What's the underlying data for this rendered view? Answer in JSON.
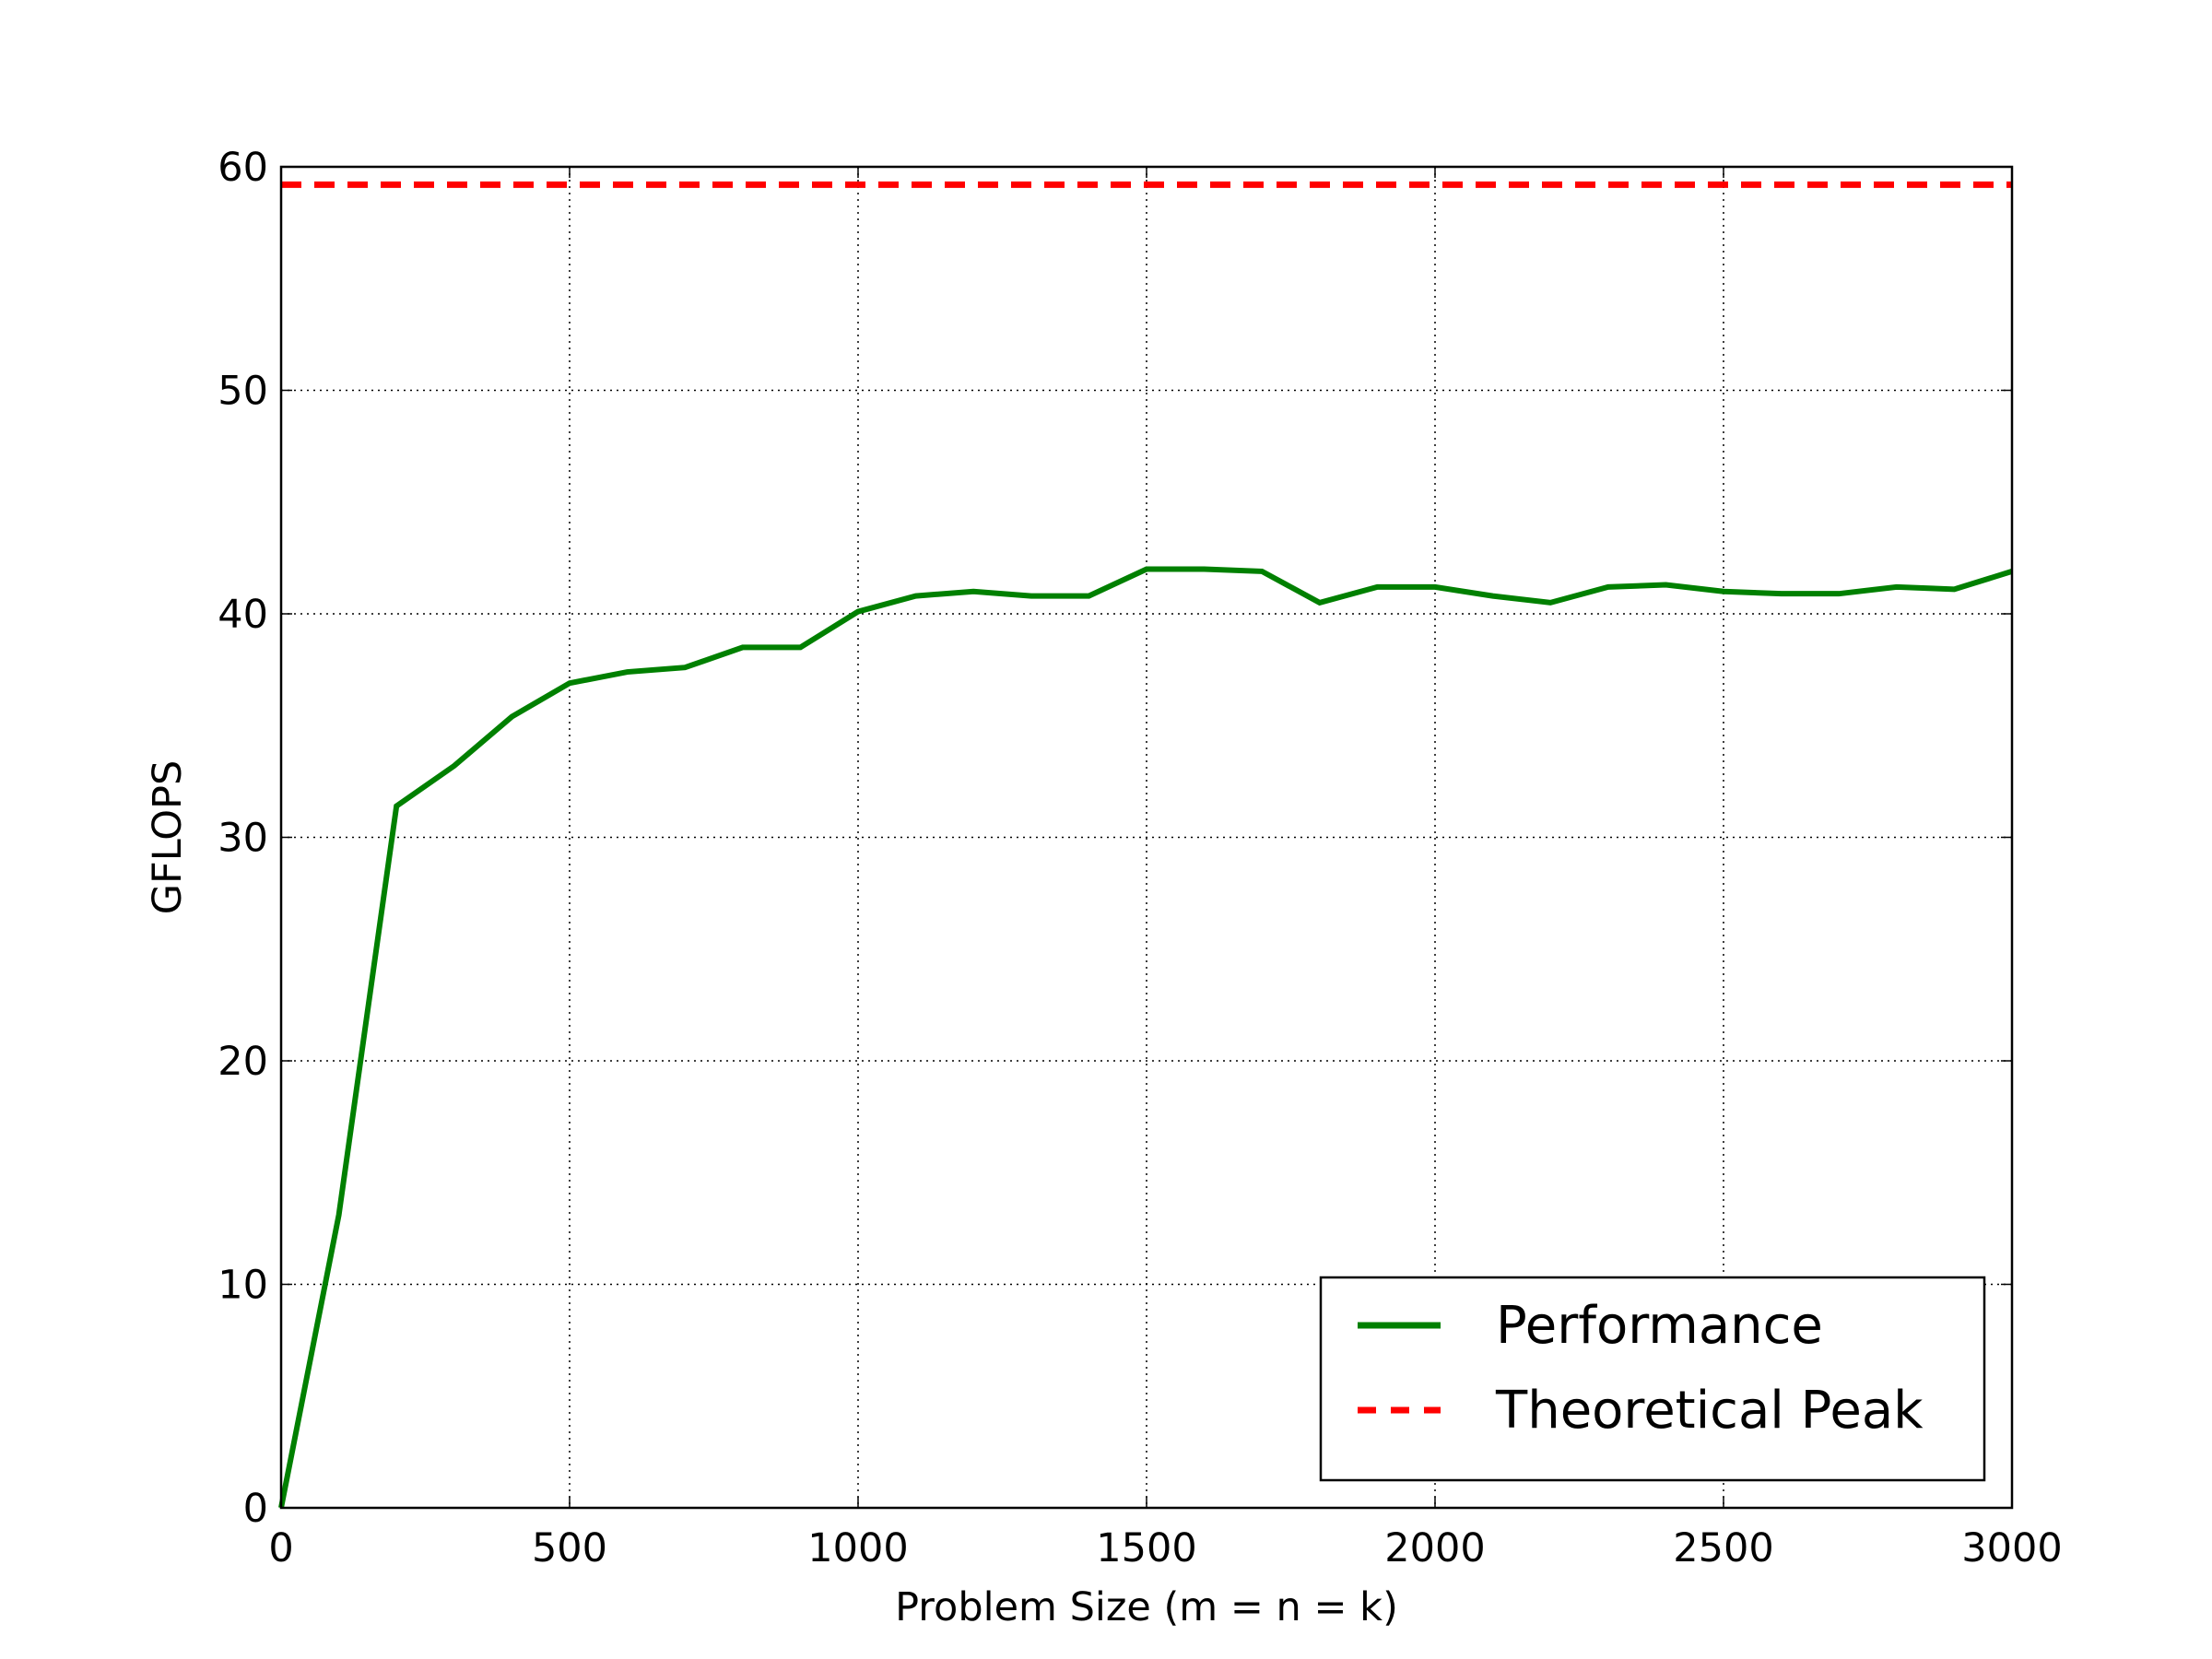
{
  "chart_data": {
    "type": "line",
    "xlabel": "Problem Size (m = n = k)",
    "ylabel": "GFLOPS",
    "x": [
      0,
      100,
      200,
      300,
      400,
      500,
      600,
      700,
      800,
      900,
      1000,
      1100,
      1200,
      1300,
      1400,
      1500,
      1600,
      1700,
      1800,
      1900,
      2000,
      2100,
      2200,
      2300,
      2400,
      2500,
      2600,
      2700,
      2800,
      2900,
      3000
    ],
    "series": [
      {
        "name": "Performance",
        "color": "#008000",
        "dash": "solid",
        "values": [
          0,
          13.1,
          31.4,
          33.2,
          35.4,
          36.9,
          37.4,
          37.6,
          38.5,
          38.5,
          40.1,
          40.8,
          41.0,
          40.8,
          40.8,
          42.0,
          42.0,
          41.9,
          40.5,
          41.2,
          41.2,
          40.8,
          40.5,
          41.2,
          41.3,
          41.0,
          40.9,
          40.9,
          41.2,
          41.1,
          41.9
        ]
      },
      {
        "name": "Theoretical Peak",
        "color": "#ff0000",
        "dash": "dashed",
        "values": [
          59.2,
          59.2,
          59.2,
          59.2,
          59.2,
          59.2,
          59.2,
          59.2,
          59.2,
          59.2,
          59.2,
          59.2,
          59.2,
          59.2,
          59.2,
          59.2,
          59.2,
          59.2,
          59.2,
          59.2,
          59.2,
          59.2,
          59.2,
          59.2,
          59.2,
          59.2,
          59.2,
          59.2,
          59.2,
          59.2,
          59.2
        ]
      }
    ],
    "xlim": [
      0,
      3000
    ],
    "xticks": [
      0,
      500,
      1000,
      1500,
      2000,
      2500,
      3000
    ],
    "ylim": [
      0,
      60
    ],
    "yticks": [
      0,
      10,
      20,
      30,
      40,
      50,
      60
    ],
    "grid": true,
    "legend": "lower right"
  }
}
